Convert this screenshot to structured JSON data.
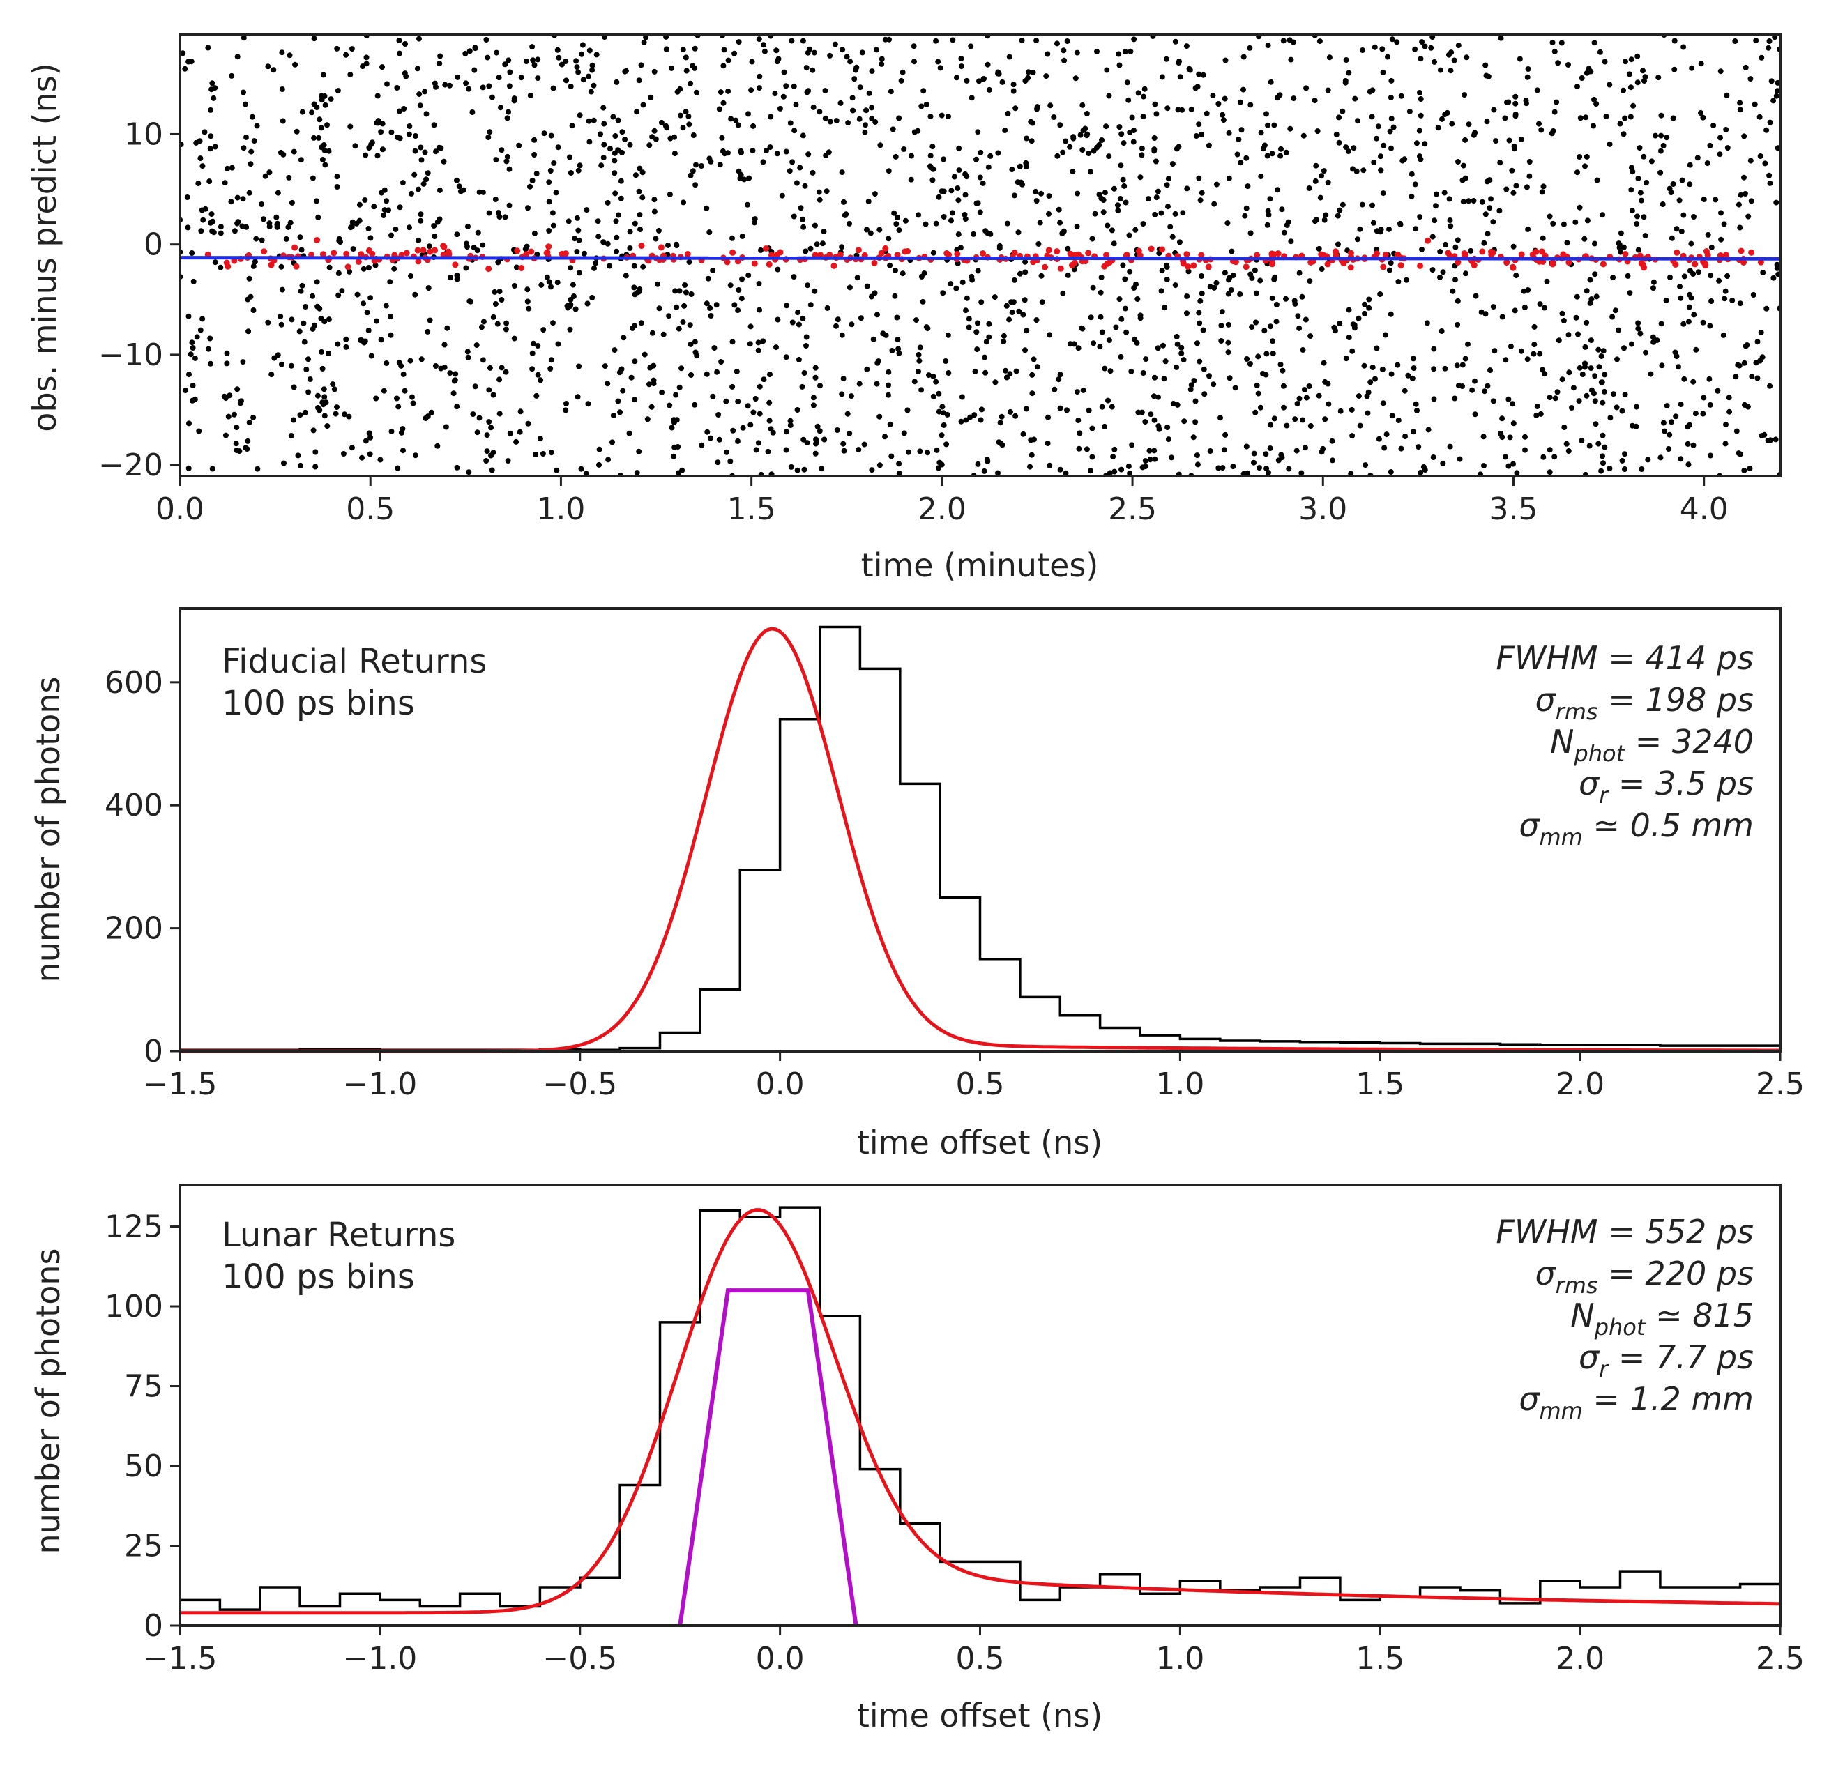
{
  "chart_data": [
    {
      "type": "scatter",
      "xlabel": "time (minutes)",
      "ylabel": "obs. minus predict (ns)",
      "xlim": [
        0.0,
        4.2
      ],
      "ylim": [
        -21,
        19
      ],
      "xticks": [
        "0.0",
        "0.5",
        "1.0",
        "1.5",
        "2.0",
        "2.5",
        "3.0",
        "3.5",
        "4.0"
      ],
      "yticks": [
        "10",
        "0",
        "−10",
        "−20"
      ],
      "series": [
        {
          "name": "background photons",
          "color": "#000000",
          "distribution": "uniform",
          "count": 2500,
          "ylim": [
            -21,
            19
          ]
        },
        {
          "name": "lunar returns",
          "color": "#e8141b",
          "distribution": "band",
          "count": 320,
          "center": -1.2,
          "halfwidth": 0.9
        },
        {
          "name": "fit line",
          "color": "#1f2ee0",
          "type": "line",
          "x": [
            0.0,
            4.2
          ],
          "y": [
            -1.2,
            -1.3
          ]
        }
      ]
    },
    {
      "type": "histogram",
      "xlabel": "time offset (ns)",
      "ylabel": "number of photons",
      "xlim": [
        -1.5,
        2.5
      ],
      "ylim": [
        0,
        720
      ],
      "xticks": [
        "−1.5",
        "−1.0",
        "−0.5",
        "0.0",
        "0.5",
        "1.0",
        "1.5",
        "2.0",
        "2.5"
      ],
      "yticks": [
        "0",
        "200",
        "400",
        "600"
      ],
      "annotation": [
        "Fiducial Returns",
        "100 ps bins"
      ],
      "stats": [
        {
          "lhs": "FWHM",
          "sub": "",
          "op": "=",
          "value": "414 ps"
        },
        {
          "lhs": "σ",
          "sub": "rms",
          "op": "=",
          "value": "198 ps"
        },
        {
          "lhs": "N",
          "sub": "phot",
          "op": "=",
          "value": "3240"
        },
        {
          "lhs": "σ",
          "sub": "r",
          "op": "=",
          "value": "3.5 ps"
        },
        {
          "lhs": "σ",
          "sub": "mm",
          "op": "≃",
          "value": "0.5 mm"
        }
      ],
      "bin_width": 0.1,
      "bin_edges_start": -1.5,
      "counts": [
        2,
        2,
        2,
        3,
        3,
        2,
        2,
        2,
        2,
        3,
        2,
        5,
        30,
        100,
        295,
        540,
        690,
        622,
        435,
        250,
        150,
        88,
        58,
        38,
        26,
        20,
        17,
        16,
        15,
        14,
        13,
        12,
        12,
        11,
        10,
        10,
        10,
        9,
        9,
        9
      ],
      "fit": {
        "color": "#e8141b",
        "model": "exponentially modified gaussian",
        "peak": 685,
        "mu": -0.02,
        "sigma": 0.165,
        "tail_amplitude": 14,
        "tail_decay": 1.0
      },
      "hist_color": "#000000"
    },
    {
      "type": "histogram",
      "xlabel": "time offset (ns)",
      "ylabel": "number of photons",
      "xlim": [
        -1.5,
        2.5
      ],
      "ylim": [
        0,
        138
      ],
      "xticks": [
        "−1.5",
        "−1.0",
        "−0.5",
        "0.0",
        "0.5",
        "1.0",
        "1.5",
        "2.0",
        "2.5"
      ],
      "yticks": [
        "0",
        "25",
        "50",
        "75",
        "100",
        "125"
      ],
      "annotation": [
        "Lunar Returns",
        "100 ps bins"
      ],
      "stats": [
        {
          "lhs": "FWHM",
          "sub": "",
          "op": "=",
          "value": "552 ps"
        },
        {
          "lhs": "σ",
          "sub": "rms",
          "op": "=",
          "value": "220 ps"
        },
        {
          "lhs": "N",
          "sub": "phot",
          "op": "≃",
          "value": "815"
        },
        {
          "lhs": "σ",
          "sub": "r",
          "op": "=",
          "value": "7.7 ps"
        },
        {
          "lhs": "σ",
          "sub": "mm",
          "op": "=",
          "value": "1.2 mm"
        }
      ],
      "bin_width": 0.1,
      "bin_edges_start": -1.5,
      "counts": [
        8,
        5,
        12,
        6,
        10,
        8,
        6,
        10,
        6,
        12,
        15,
        44,
        95,
        130,
        128,
        131,
        97,
        49,
        32,
        20,
        20,
        8,
        12,
        16,
        10,
        14,
        11,
        12,
        15,
        8,
        9,
        12,
        11,
        7,
        14,
        12,
        17,
        12,
        12,
        13
      ],
      "fit": {
        "color": "#e8141b",
        "model": "exponentially modified gaussian",
        "peak": 124,
        "mu": -0.06,
        "sigma": 0.195,
        "tail_amplitude": 14,
        "tail_decay": 1.6,
        "baseline": 4
      },
      "reflector_profile": {
        "color": "#b40fc8",
        "x": [
          -0.25,
          -0.13,
          0.07,
          0.19
        ],
        "y": [
          0,
          105,
          105,
          0
        ]
      },
      "hist_color": "#000000"
    }
  ]
}
